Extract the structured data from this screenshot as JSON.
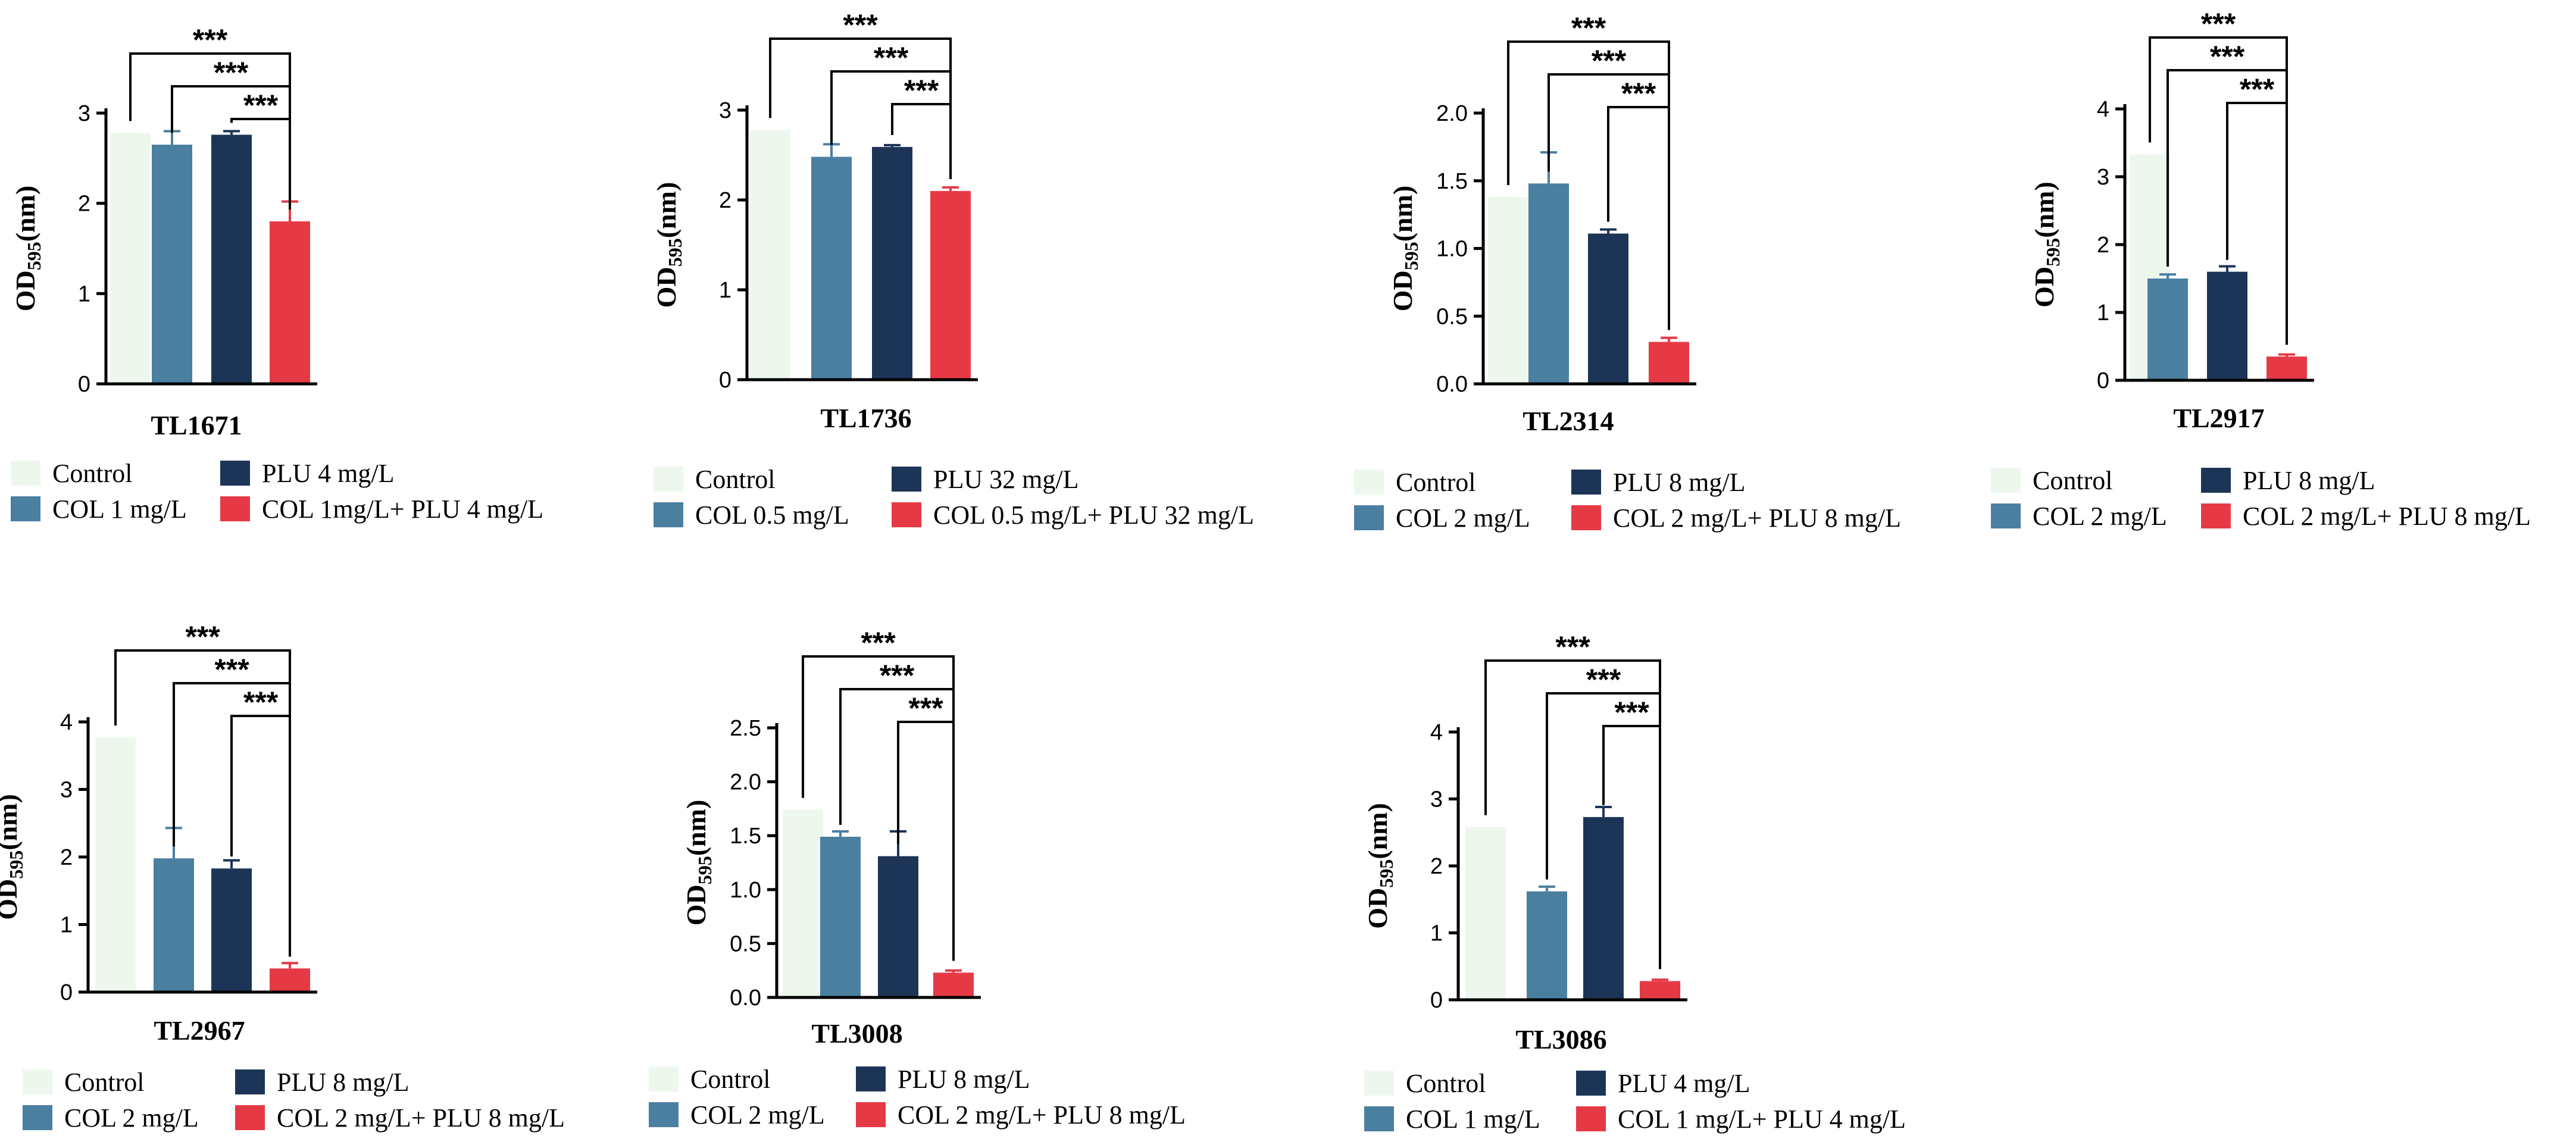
{
  "colors": {
    "control": "#eef7ee",
    "col": "#4a7fa0",
    "plu": "#1c3557",
    "combo": "#e63946"
  },
  "ylabel_main": "OD",
  "ylabel_sub": "595",
  "ylabel_unit": "(nm)",
  "significance": "***",
  "chart_data": [
    {
      "type": "bar",
      "title": "TL1671",
      "ylim": [
        0,
        3
      ],
      "yticks": [
        "0",
        "1",
        "2",
        "3"
      ],
      "categories": [
        "Control",
        "COL 1 mg/L",
        "PLU 4 mg/L",
        "COL 1mg/L+ PLU 4 mg/L"
      ],
      "values": [
        2.78,
        2.65,
        2.76,
        1.8
      ],
      "errors": [
        0.0,
        0.15,
        0.04,
        0.22
      ],
      "legend": [
        "Control",
        "COL 1 mg/L",
        "PLU 4 mg/L",
        "COL 1mg/L+ PLU 4 mg/L"
      ]
    },
    {
      "type": "bar",
      "title": "TL1736",
      "ylim": [
        0,
        3
      ],
      "yticks": [
        "0",
        "1",
        "2",
        "3"
      ],
      "categories": [
        "Control",
        "COL 0.5 mg/L",
        "PLU 32 mg/L",
        "COL 0.5 mg/L+ PLU 32 mg/L"
      ],
      "values": [
        2.78,
        2.48,
        2.59,
        2.1
      ],
      "errors": [
        0.0,
        0.14,
        0.02,
        0.04
      ],
      "legend": [
        "Control",
        "COL 0.5 mg/L",
        "PLU 32 mg/L",
        "COL 0.5 mg/L+ PLU 32 mg/L"
      ]
    },
    {
      "type": "bar",
      "title": "TL2314",
      "ylim": [
        0,
        2
      ],
      "yticks": [
        "0.0",
        "0.5",
        "1.0",
        "1.5",
        "2.0"
      ],
      "categories": [
        "Control",
        "COL 2 mg/L",
        "PLU 8 mg/L",
        "COL 2 mg/L+ PLU 8 mg/L"
      ],
      "values": [
        1.38,
        1.48,
        1.11,
        0.31
      ],
      "errors": [
        0.0,
        0.23,
        0.03,
        0.03
      ],
      "legend": [
        "Control",
        "COL 2 mg/L",
        "PLU 8 mg/L",
        "COL 2 mg/L+ PLU 8 mg/L"
      ]
    },
    {
      "type": "bar",
      "title": "TL2917",
      "ylim": [
        0,
        4
      ],
      "yticks": [
        "0",
        "1",
        "2",
        "3",
        "4"
      ],
      "categories": [
        "Control",
        "COL 2 mg/L",
        "PLU 8 mg/L",
        "COL 2 mg/L+ PLU 8 mg/L"
      ],
      "values": [
        3.33,
        1.5,
        1.6,
        0.35
      ],
      "errors": [
        0.0,
        0.06,
        0.08,
        0.03
      ],
      "legend": [
        "Control",
        "COL 2 mg/L",
        "PLU 8 mg/L",
        "COL 2 mg/L+ PLU 8 mg/L"
      ]
    },
    {
      "type": "bar",
      "title": "TL2967",
      "ylim": [
        0,
        4
      ],
      "yticks": [
        "0",
        "1",
        "2",
        "3",
        "4"
      ],
      "categories": [
        "Control",
        "COL 2 mg/L",
        "PLU 8 mg/L",
        "COL 2 mg/L+ PLU 8 mg/L"
      ],
      "values": [
        3.77,
        1.98,
        1.83,
        0.35
      ],
      "errors": [
        0.0,
        0.45,
        0.12,
        0.08
      ],
      "legend": [
        "Control",
        "COL 2 mg/L",
        "PLU 8 mg/L",
        "COL 2 mg/L+ PLU 8 mg/L"
      ]
    },
    {
      "type": "bar",
      "title": "TL3008",
      "ylim": [
        0,
        2.5
      ],
      "yticks": [
        "0.0",
        "0.5",
        "1.0",
        "1.5",
        "2.0",
        "2.5"
      ],
      "categories": [
        "Control",
        "COL 2 mg/L",
        "PLU 8 mg/L",
        "COL 2 mg/L+ PLU 8 mg/L"
      ],
      "values": [
        1.74,
        1.49,
        1.31,
        0.23
      ],
      "errors": [
        0.0,
        0.05,
        0.23,
        0.02
      ],
      "legend": [
        "Control",
        "COL 2 mg/L",
        "PLU 8 mg/L",
        "COL 2 mg/L+ PLU 8 mg/L"
      ]
    },
    {
      "type": "bar",
      "title": "TL3086",
      "ylim": [
        0,
        4
      ],
      "yticks": [
        "0",
        "1",
        "2",
        "3",
        "4"
      ],
      "categories": [
        "Control",
        "COL 1 mg/L",
        "PLU 4 mg/L",
        "COL 1 mg/L+ PLU 4 mg/L"
      ],
      "values": [
        2.58,
        1.62,
        2.73,
        0.28
      ],
      "errors": [
        0.0,
        0.07,
        0.15,
        0.02
      ],
      "legend": [
        "Control",
        "COL 1 mg/L",
        "PLU 4 mg/L",
        "COL 1 mg/L+ PLU 4 mg/L"
      ]
    }
  ]
}
